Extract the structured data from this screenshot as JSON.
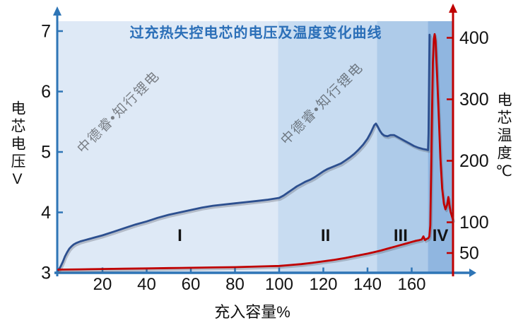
{
  "watermark": {
    "text": "中德睿•知行锂电"
  },
  "chart_data": {
    "type": "line",
    "title": "过充热失控电芯的电压及温度变化曲线",
    "xlabel": "充入容量%",
    "ylabel_left": "电芯电压V",
    "ylabel_right": "电芯温度℃",
    "x_ticks": [
      20,
      40,
      60,
      80,
      100,
      120,
      140,
      160
    ],
    "x_range": [
      0,
      179
    ],
    "y_left_ticks": [
      3,
      4,
      5,
      6,
      7
    ],
    "y_left_range": [
      3,
      7.2
    ],
    "y_right_ticks": [
      50,
      100,
      200,
      300,
      400
    ],
    "y_right_range": [
      20,
      420
    ],
    "grid": false,
    "legend": "none",
    "regions": [
      {
        "label": "I",
        "from": 0,
        "to": 99.5,
        "color": "#dee9f6",
        "label_x": 55
      },
      {
        "label": "II",
        "from": 99.5,
        "to": 144.3,
        "color": "#c8dcf1",
        "label_x": 121
      },
      {
        "label": "III",
        "from": 144.3,
        "to": 167.3,
        "color": "#aecbe9",
        "label_x": 155
      },
      {
        "label": "IV",
        "from": 167.3,
        "to": 178.9,
        "color": "#90b6e0",
        "label_x": 173
      }
    ],
    "axis_colors": {
      "x": "#2e75b6",
      "left": "#2e75b6",
      "right": "#c00000"
    },
    "series": [
      {
        "name": "cell-voltage",
        "axis": "left",
        "color": "#2c4f8f",
        "points": [
          [
            0,
            3.04
          ],
          [
            1,
            3.1
          ],
          [
            2,
            3.18
          ],
          [
            3,
            3.27
          ],
          [
            4,
            3.34
          ],
          [
            5,
            3.4
          ],
          [
            6,
            3.44
          ],
          [
            7,
            3.47
          ],
          [
            8,
            3.49
          ],
          [
            10,
            3.52
          ],
          [
            12,
            3.54
          ],
          [
            16,
            3.58
          ],
          [
            20,
            3.62
          ],
          [
            25,
            3.68
          ],
          [
            30,
            3.74
          ],
          [
            35,
            3.8
          ],
          [
            40,
            3.85
          ],
          [
            45,
            3.91
          ],
          [
            50,
            3.96
          ],
          [
            55,
            4.0
          ],
          [
            60,
            4.04
          ],
          [
            65,
            4.08
          ],
          [
            70,
            4.11
          ],
          [
            75,
            4.13
          ],
          [
            80,
            4.15
          ],
          [
            85,
            4.17
          ],
          [
            90,
            4.19
          ],
          [
            95,
            4.21
          ],
          [
            100,
            4.24
          ],
          [
            102,
            4.28
          ],
          [
            104,
            4.33
          ],
          [
            106,
            4.38
          ],
          [
            108,
            4.43
          ],
          [
            110,
            4.47
          ],
          [
            112,
            4.51
          ],
          [
            114,
            4.54
          ],
          [
            116,
            4.58
          ],
          [
            118,
            4.63
          ],
          [
            120,
            4.68
          ],
          [
            122,
            4.72
          ],
          [
            124,
            4.75
          ],
          [
            126,
            4.78
          ],
          [
            128,
            4.81
          ],
          [
            130,
            4.86
          ],
          [
            132,
            4.91
          ],
          [
            134,
            4.97
          ],
          [
            136,
            5.04
          ],
          [
            138,
            5.12
          ],
          [
            140,
            5.22
          ],
          [
            141.5,
            5.32
          ],
          [
            143,
            5.44
          ],
          [
            143.8,
            5.47
          ],
          [
            144.6,
            5.42
          ],
          [
            145.6,
            5.35
          ],
          [
            146.6,
            5.3
          ],
          [
            147.6,
            5.27
          ],
          [
            149,
            5.26
          ],
          [
            150.5,
            5.28
          ],
          [
            152,
            5.28
          ],
          [
            153.5,
            5.25
          ],
          [
            155,
            5.22
          ],
          [
            157,
            5.18
          ],
          [
            159,
            5.14
          ],
          [
            161,
            5.1
          ],
          [
            163,
            5.07
          ],
          [
            165,
            5.05
          ],
          [
            166.5,
            5.04
          ],
          [
            167.4,
            5.03
          ],
          [
            167.6,
            5.3
          ],
          [
            167.8,
            6.0
          ],
          [
            168.1,
            6.94
          ]
        ]
      },
      {
        "name": "cell-temperature",
        "axis": "right",
        "color": "#c00000",
        "points": [
          [
            0,
            23
          ],
          [
            10,
            23.5
          ],
          [
            20,
            24
          ],
          [
            30,
            24.5
          ],
          [
            40,
            25
          ],
          [
            50,
            25.5
          ],
          [
            60,
            26
          ],
          [
            70,
            26.5
          ],
          [
            80,
            27
          ],
          [
            90,
            28
          ],
          [
            100,
            29
          ],
          [
            105,
            30.5
          ],
          [
            110,
            32
          ],
          [
            115,
            34
          ],
          [
            120,
            36.5
          ],
          [
            125,
            39
          ],
          [
            130,
            42
          ],
          [
            135,
            45.5
          ],
          [
            140,
            49
          ],
          [
            143,
            51.5
          ],
          [
            146,
            54
          ],
          [
            149,
            57
          ],
          [
            152,
            60
          ],
          [
            155,
            63
          ],
          [
            158,
            66
          ],
          [
            160,
            68
          ],
          [
            162,
            70
          ],
          [
            163.5,
            71
          ],
          [
            164.5,
            72
          ],
          [
            165.3,
            77
          ],
          [
            166,
            71
          ],
          [
            166.8,
            73
          ],
          [
            167.5,
            74
          ],
          [
            168,
            77
          ],
          [
            168.4,
            95
          ],
          [
            168.8,
            180
          ],
          [
            169.2,
            280
          ],
          [
            169.6,
            360
          ],
          [
            170,
            398
          ],
          [
            170.4,
            406
          ],
          [
            170.8,
            395
          ],
          [
            171.5,
            340
          ],
          [
            172.3,
            270
          ],
          [
            173,
            205
          ],
          [
            173.8,
            155
          ],
          [
            174.6,
            130
          ],
          [
            175.3,
            121
          ],
          [
            176,
            128
          ],
          [
            176.6,
            141
          ],
          [
            177.1,
            128
          ],
          [
            177.6,
            117
          ],
          [
            178.2,
            110
          ],
          [
            178.7,
            104
          ]
        ]
      }
    ]
  }
}
